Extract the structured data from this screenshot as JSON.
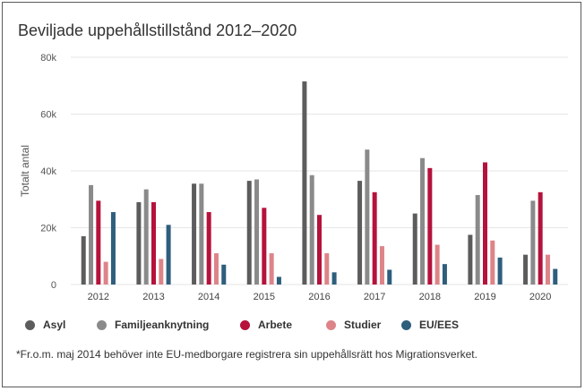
{
  "colors": {
    "Asyl": "#5c5c5c",
    "Familjeanknytning": "#8a8a8a",
    "Arbete": "#b5123c",
    "Studier": "#dd8488",
    "EU/EES": "#2e5e7c",
    "grid": "#e6e6e6",
    "axis_text": "#555555"
  },
  "chart_data": {
    "type": "bar",
    "title": "Beviljade uppehållstillstånd 2012–2020",
    "xlabel": "",
    "ylabel": "Totalt antal",
    "ylim": [
      0,
      80000
    ],
    "yticks": [
      0,
      20000,
      40000,
      60000,
      80000
    ],
    "ytick_labels": [
      "0",
      "20k",
      "40k",
      "60k",
      "80k"
    ],
    "grid": true,
    "legend_position": "bottom-left",
    "categories": [
      "2012",
      "2013",
      "2014",
      "2015",
      "2016",
      "2017",
      "2018",
      "2019",
      "2020"
    ],
    "series": [
      {
        "name": "Asyl",
        "values": [
          17000,
          29000,
          35500,
          36500,
          71500,
          36500,
          25000,
          17500,
          10500
        ]
      },
      {
        "name": "Familjeanknytning",
        "values": [
          35000,
          33500,
          35500,
          37000,
          38500,
          47500,
          44500,
          31500,
          29500
        ]
      },
      {
        "name": "Arbete",
        "values": [
          29500,
          29000,
          25500,
          27000,
          24500,
          32500,
          41000,
          43000,
          32500
        ]
      },
      {
        "name": "Studier",
        "values": [
          8000,
          9000,
          11000,
          11000,
          11000,
          13500,
          14000,
          15500,
          10500
        ]
      },
      {
        "name": "EU/EES",
        "values": [
          25500,
          21000,
          7000,
          2700,
          4300,
          5200,
          7200,
          9500,
          5500
        ]
      }
    ]
  },
  "footnote": "*Fr.o.m. maj 2014 behöver inte EU-medborgare registrera sin uppehållsrätt hos Migrationsverket."
}
